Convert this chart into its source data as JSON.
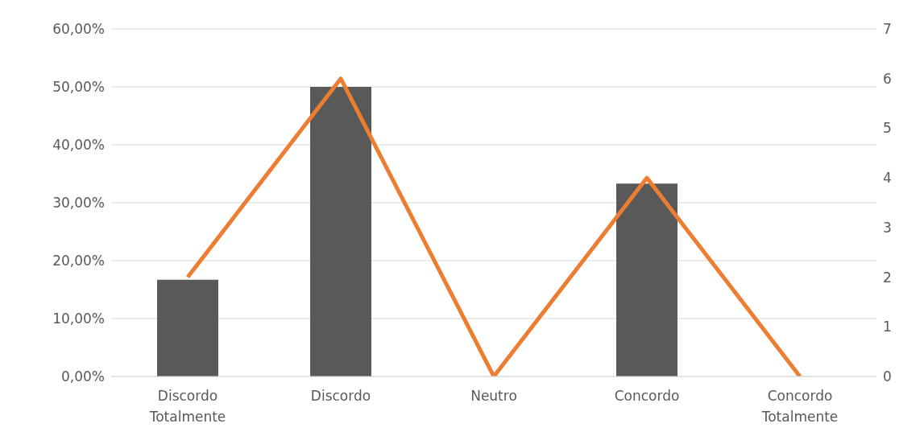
{
  "chart_data": {
    "type": "bar",
    "categories": [
      "Discordo Totalmente",
      "Discordo",
      "Neutro",
      "Concordo",
      "Concordo Totalmente"
    ],
    "series": [
      {
        "color": "#595959",
        "values": [
          16.7,
          50,
          0,
          33.3,
          0
        ]
      },
      {
        "type": "line",
        "axis": "y2",
        "color": "#ed7d31",
        "values": [
          2,
          6,
          0,
          4,
          0
        ]
      }
    ],
    "ylim": [
      0,
      60
    ],
    "yticks": [
      {
        "value": 0,
        "label": "0,00%"
      },
      {
        "value": 10,
        "label": "10,00%"
      },
      {
        "value": 20,
        "label": "20,00%"
      },
      {
        "value": 30,
        "label": "30,00%"
      },
      {
        "value": 40,
        "label": "40,00%"
      },
      {
        "value": 50,
        "label": "50,00%"
      },
      {
        "value": 60,
        "label": "60,00%"
      }
    ],
    "y2lim": [
      0,
      7
    ],
    "y2ticks": [
      0,
      1,
      2,
      3,
      4,
      5,
      6,
      7
    ],
    "grid": "y",
    "marker": "none",
    "line_style": "solid",
    "legend": false
  }
}
